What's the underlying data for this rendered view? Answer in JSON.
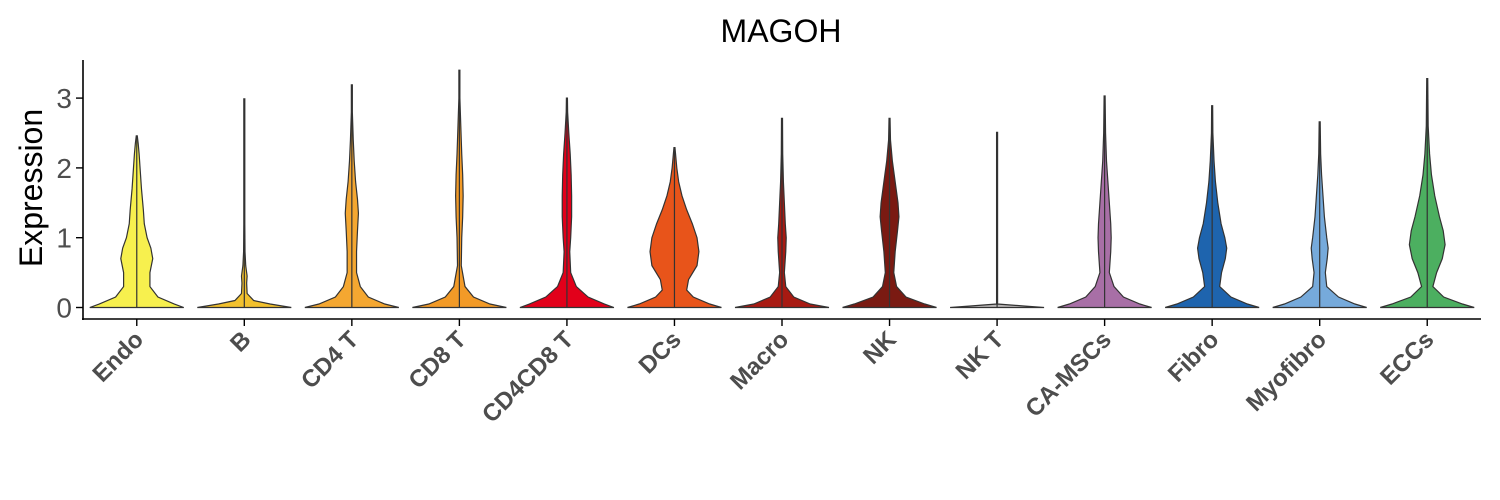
{
  "chart_data": {
    "type": "violin",
    "title": "MAGOH",
    "xlabel": "",
    "ylabel": "Expression",
    "ylim": [
      -0.17,
      3.55
    ],
    "yticks": [
      0,
      1,
      2,
      3
    ],
    "grid": false,
    "legend": "none",
    "categories": [
      "Endo",
      "B",
      "CD4 T",
      "CD8 T",
      "CD4CD8 T",
      "DCs",
      "Macro",
      "NK",
      "NK T",
      "CA-MSCs",
      "Fibro",
      "Myofibro",
      "ECCs"
    ],
    "colors": [
      "#F7F04E",
      "#F2C12E",
      "#F4A731",
      "#F29A27",
      "#E2001A",
      "#E8541A",
      "#A81A12",
      "#7A1A12",
      "#B9B6B6",
      "#A86FA6",
      "#1E64AE",
      "#76AADB",
      "#4CAF60"
    ],
    "violins": [
      {
        "name": "Endo",
        "max": 2.46,
        "profile": [
          [
            0,
            1
          ],
          [
            0.05,
            0.8
          ],
          [
            0.15,
            0.45
          ],
          [
            0.3,
            0.28
          ],
          [
            0.5,
            0.28
          ],
          [
            0.7,
            0.34
          ],
          [
            0.85,
            0.3
          ],
          [
            1.0,
            0.22
          ],
          [
            1.2,
            0.16
          ],
          [
            1.4,
            0.14
          ],
          [
            1.7,
            0.1
          ],
          [
            2.0,
            0.07
          ],
          [
            2.2,
            0.05
          ],
          [
            2.35,
            0.03
          ],
          [
            2.46,
            0
          ]
        ]
      },
      {
        "name": "B",
        "max": 2.99,
        "profile": [
          [
            0,
            1
          ],
          [
            0.05,
            0.55
          ],
          [
            0.1,
            0.2
          ],
          [
            0.2,
            0.06
          ],
          [
            0.35,
            0.05
          ],
          [
            0.45,
            0.06
          ],
          [
            0.6,
            0.03
          ],
          [
            0.8,
            0.015
          ],
          [
            1.2,
            0.01
          ],
          [
            2.0,
            0.005
          ],
          [
            2.99,
            0
          ]
        ]
      },
      {
        "name": "CD4 T",
        "max": 3.19,
        "profile": [
          [
            0,
            1
          ],
          [
            0.05,
            0.7
          ],
          [
            0.15,
            0.35
          ],
          [
            0.3,
            0.18
          ],
          [
            0.5,
            0.1
          ],
          [
            0.8,
            0.1
          ],
          [
            1.1,
            0.12
          ],
          [
            1.35,
            0.14
          ],
          [
            1.55,
            0.12
          ],
          [
            1.8,
            0.08
          ],
          [
            2.1,
            0.05
          ],
          [
            2.4,
            0.03
          ],
          [
            2.8,
            0.01
          ],
          [
            3.19,
            0
          ]
        ]
      },
      {
        "name": "CD8 T",
        "max": 3.4,
        "profile": [
          [
            0,
            1
          ],
          [
            0.05,
            0.65
          ],
          [
            0.15,
            0.3
          ],
          [
            0.3,
            0.12
          ],
          [
            0.6,
            0.04
          ],
          [
            1.0,
            0.05
          ],
          [
            1.3,
            0.07
          ],
          [
            1.6,
            0.08
          ],
          [
            1.9,
            0.07
          ],
          [
            2.2,
            0.05
          ],
          [
            2.6,
            0.03
          ],
          [
            3.0,
            0.01
          ],
          [
            3.4,
            0
          ]
        ]
      },
      {
        "name": "CD4CD8 T",
        "max": 3.0,
        "profile": [
          [
            0,
            1
          ],
          [
            0.05,
            0.8
          ],
          [
            0.15,
            0.45
          ],
          [
            0.3,
            0.2
          ],
          [
            0.5,
            0.08
          ],
          [
            0.8,
            0.06
          ],
          [
            1.0,
            0.08
          ],
          [
            1.3,
            0.1
          ],
          [
            1.6,
            0.1
          ],
          [
            1.9,
            0.09
          ],
          [
            2.2,
            0.07
          ],
          [
            2.5,
            0.04
          ],
          [
            2.8,
            0.015
          ],
          [
            3.0,
            0
          ]
        ]
      },
      {
        "name": "DCs",
        "max": 2.29,
        "profile": [
          [
            0,
            1
          ],
          [
            0.05,
            0.75
          ],
          [
            0.15,
            0.4
          ],
          [
            0.25,
            0.26
          ],
          [
            0.4,
            0.3
          ],
          [
            0.6,
            0.48
          ],
          [
            0.8,
            0.52
          ],
          [
            1.0,
            0.48
          ],
          [
            1.2,
            0.38
          ],
          [
            1.4,
            0.26
          ],
          [
            1.6,
            0.16
          ],
          [
            1.8,
            0.09
          ],
          [
            2.0,
            0.05
          ],
          [
            2.29,
            0
          ]
        ]
      },
      {
        "name": "Macro",
        "max": 2.71,
        "profile": [
          [
            0,
            1
          ],
          [
            0.05,
            0.6
          ],
          [
            0.15,
            0.25
          ],
          [
            0.3,
            0.08
          ],
          [
            0.5,
            0.05
          ],
          [
            0.8,
            0.08
          ],
          [
            1.0,
            0.09
          ],
          [
            1.2,
            0.07
          ],
          [
            1.5,
            0.05
          ],
          [
            1.8,
            0.03
          ],
          [
            2.2,
            0.015
          ],
          [
            2.71,
            0
          ]
        ]
      },
      {
        "name": "NK",
        "max": 2.71,
        "profile": [
          [
            0,
            1
          ],
          [
            0.05,
            0.75
          ],
          [
            0.15,
            0.35
          ],
          [
            0.3,
            0.15
          ],
          [
            0.5,
            0.09
          ],
          [
            0.8,
            0.12
          ],
          [
            1.1,
            0.17
          ],
          [
            1.3,
            0.2
          ],
          [
            1.5,
            0.18
          ],
          [
            1.7,
            0.14
          ],
          [
            1.9,
            0.1
          ],
          [
            2.1,
            0.06
          ],
          [
            2.4,
            0.02
          ],
          [
            2.71,
            0
          ]
        ]
      },
      {
        "name": "NK T",
        "max": 2.51,
        "profile": [
          [
            0,
            1
          ],
          [
            0.02,
            0.6
          ],
          [
            0.05,
            0.01
          ],
          [
            0.5,
            0.005
          ],
          [
            1.5,
            0.005
          ],
          [
            2.51,
            0
          ]
        ]
      },
      {
        "name": "CA-MSCs",
        "max": 3.03,
        "profile": [
          [
            0,
            1
          ],
          [
            0.05,
            0.75
          ],
          [
            0.15,
            0.4
          ],
          [
            0.3,
            0.2
          ],
          [
            0.5,
            0.1
          ],
          [
            0.8,
            0.13
          ],
          [
            1.0,
            0.14
          ],
          [
            1.2,
            0.13
          ],
          [
            1.5,
            0.1
          ],
          [
            1.8,
            0.07
          ],
          [
            2.1,
            0.04
          ],
          [
            2.5,
            0.02
          ],
          [
            3.03,
            0
          ]
        ]
      },
      {
        "name": "Fibro",
        "max": 2.89,
        "profile": [
          [
            0,
            1
          ],
          [
            0.05,
            0.75
          ],
          [
            0.15,
            0.4
          ],
          [
            0.3,
            0.16
          ],
          [
            0.5,
            0.2
          ],
          [
            0.7,
            0.28
          ],
          [
            0.85,
            0.31
          ],
          [
            1.0,
            0.27
          ],
          [
            1.2,
            0.19
          ],
          [
            1.5,
            0.12
          ],
          [
            1.8,
            0.07
          ],
          [
            2.1,
            0.04
          ],
          [
            2.5,
            0.015
          ],
          [
            2.89,
            0
          ]
        ]
      },
      {
        "name": "Myofibro",
        "max": 2.66,
        "profile": [
          [
            0,
            1
          ],
          [
            0.05,
            0.75
          ],
          [
            0.15,
            0.4
          ],
          [
            0.3,
            0.15
          ],
          [
            0.5,
            0.12
          ],
          [
            0.7,
            0.16
          ],
          [
            0.85,
            0.18
          ],
          [
            1.0,
            0.15
          ],
          [
            1.3,
            0.1
          ],
          [
            1.6,
            0.07
          ],
          [
            1.9,
            0.04
          ],
          [
            2.2,
            0.02
          ],
          [
            2.66,
            0
          ]
        ]
      },
      {
        "name": "ECCs",
        "max": 3.28,
        "profile": [
          [
            0,
            1
          ],
          [
            0.05,
            0.75
          ],
          [
            0.15,
            0.35
          ],
          [
            0.3,
            0.12
          ],
          [
            0.5,
            0.2
          ],
          [
            0.7,
            0.32
          ],
          [
            0.9,
            0.38
          ],
          [
            1.1,
            0.34
          ],
          [
            1.3,
            0.26
          ],
          [
            1.6,
            0.16
          ],
          [
            1.9,
            0.09
          ],
          [
            2.2,
            0.05
          ],
          [
            2.6,
            0.02
          ],
          [
            3.28,
            0
          ]
        ]
      }
    ]
  }
}
